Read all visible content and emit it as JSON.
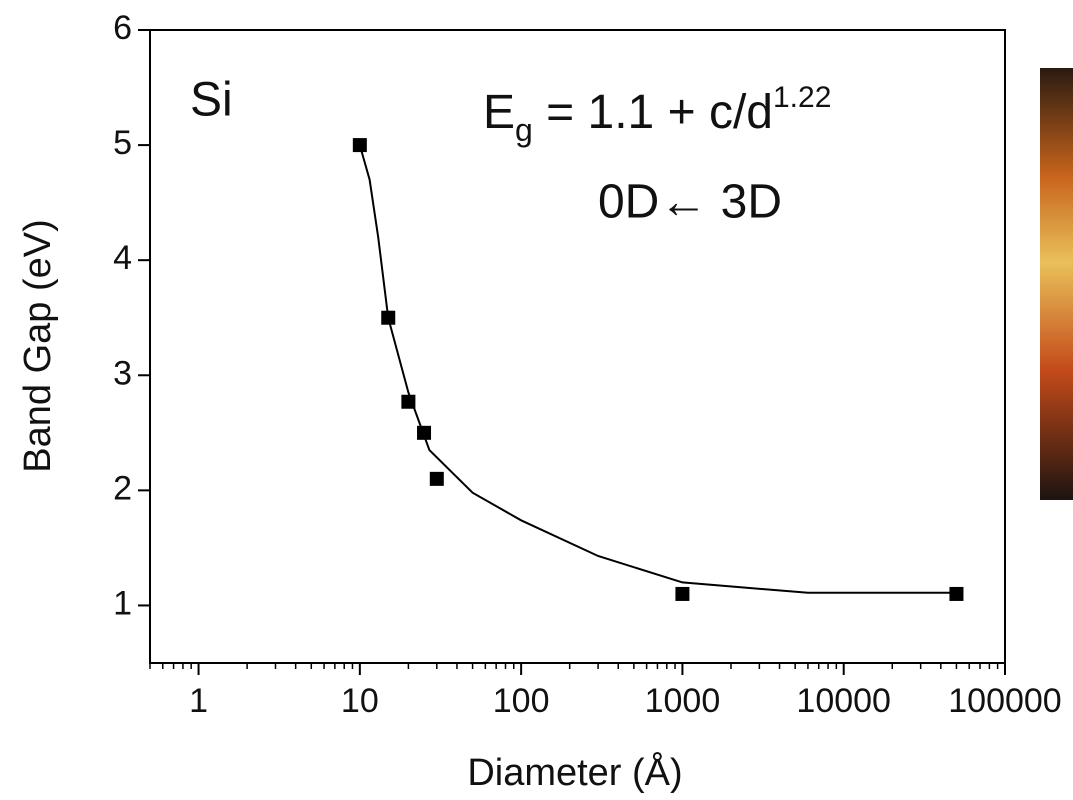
{
  "chart_data": {
    "type": "scatter",
    "x_label": "Diameter (Å)",
    "y_label": "Band Gap (eV)",
    "annotations": [
      "Si",
      "0D← 3D"
    ],
    "formula": [
      "E",
      "g",
      " = 1.1 + c/d",
      "1.22"
    ],
    "xscale": "log",
    "xlim": [
      0.5,
      100000
    ],
    "xticks": [
      1,
      10,
      100,
      1000,
      10000,
      100000
    ],
    "ylim": [
      0.5,
      6
    ],
    "yticks": [
      1,
      2,
      3,
      4,
      5,
      6
    ],
    "series": [
      {
        "type": "scatter",
        "color": "#000000",
        "x": [
          10,
          15,
          20,
          25,
          30,
          1000,
          50000
        ],
        "y": [
          5,
          3.5,
          2.77,
          2.5,
          2.1,
          1.1,
          1.1
        ]
      },
      {
        "type": "line",
        "color": "#000000",
        "x": [
          10,
          11.5,
          13,
          15,
          20,
          27,
          50,
          100,
          300,
          1000,
          6000,
          50000
        ],
        "y": [
          5,
          4.7,
          4.2,
          3.5,
          2.85,
          2.35,
          1.98,
          1.74,
          1.43,
          1.2,
          1.11,
          1.11
        ]
      }
    ]
  }
}
